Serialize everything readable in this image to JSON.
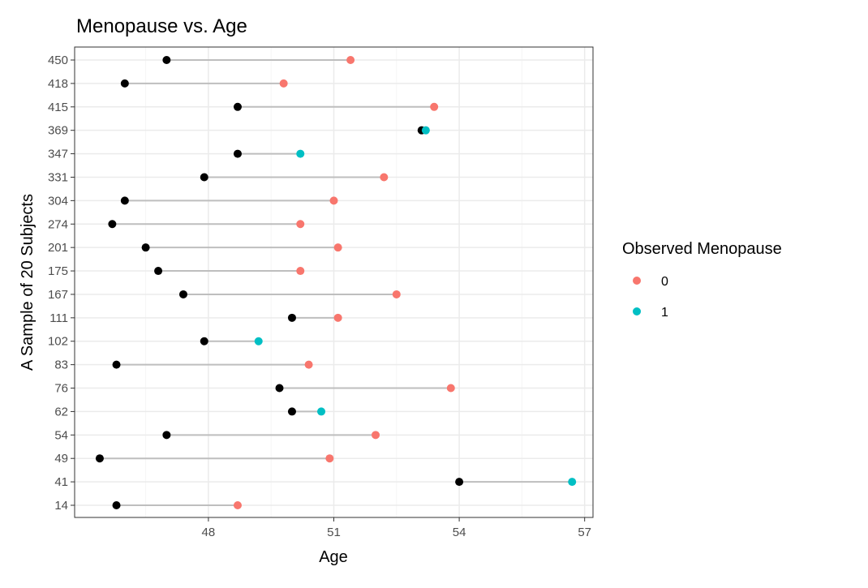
{
  "chart_data": {
    "type": "scatter",
    "title": "Menopause vs. Age",
    "xlabel": "Age",
    "ylabel": "A Sample of 20 Subjects",
    "xlim": [
      44.8,
      57.2
    ],
    "x_ticks": [
      48,
      51,
      54,
      57
    ],
    "grid": true,
    "legend": {
      "title": "Observed Menopause",
      "placement": "right",
      "entries": [
        {
          "label": "0",
          "color": "#F8766D"
        },
        {
          "label": "1",
          "color": "#00BFC4"
        }
      ]
    },
    "categories": [
      "14",
      "41",
      "49",
      "54",
      "62",
      "76",
      "83",
      "102",
      "111",
      "167",
      "175",
      "201",
      "274",
      "304",
      "331",
      "347",
      "369",
      "415",
      "418",
      "450"
    ],
    "subjects": [
      {
        "id": "14",
        "start": 45.8,
        "end": 48.7,
        "menopause": 0
      },
      {
        "id": "41",
        "start": 54.0,
        "end": 56.7,
        "menopause": 1
      },
      {
        "id": "49",
        "start": 45.4,
        "end": 50.9,
        "menopause": 0
      },
      {
        "id": "54",
        "start": 47.0,
        "end": 52.0,
        "menopause": 0
      },
      {
        "id": "62",
        "start": 50.0,
        "end": 50.7,
        "menopause": 1
      },
      {
        "id": "76",
        "start": 49.7,
        "end": 53.8,
        "menopause": 0
      },
      {
        "id": "83",
        "start": 45.8,
        "end": 50.4,
        "menopause": 0
      },
      {
        "id": "102",
        "start": 47.9,
        "end": 49.2,
        "menopause": 1
      },
      {
        "id": "111",
        "start": 50.0,
        "end": 51.1,
        "menopause": 0
      },
      {
        "id": "167",
        "start": 47.4,
        "end": 52.5,
        "menopause": 0
      },
      {
        "id": "175",
        "start": 46.8,
        "end": 50.2,
        "menopause": 0
      },
      {
        "id": "201",
        "start": 46.5,
        "end": 51.1,
        "menopause": 0
      },
      {
        "id": "274",
        "start": 45.7,
        "end": 50.2,
        "menopause": 0
      },
      {
        "id": "304",
        "start": 46.0,
        "end": 51.0,
        "menopause": 0
      },
      {
        "id": "331",
        "start": 47.9,
        "end": 52.2,
        "menopause": 0
      },
      {
        "id": "347",
        "start": 48.7,
        "end": 50.2,
        "menopause": 1
      },
      {
        "id": "369",
        "start": 53.1,
        "end": 53.2,
        "menopause": 1
      },
      {
        "id": "415",
        "start": 48.7,
        "end": 53.4,
        "menopause": 0
      },
      {
        "id": "418",
        "start": 46.0,
        "end": 49.8,
        "menopause": 0
      },
      {
        "id": "450",
        "start": 47.0,
        "end": 51.4,
        "menopause": 0
      }
    ],
    "colors": {
      "start_point": "#000000",
      "segment": "#bebebe",
      "grid_major": "#ebebeb",
      "grid_minor": "#f5f5f5",
      "panel_border": "#333333"
    }
  }
}
